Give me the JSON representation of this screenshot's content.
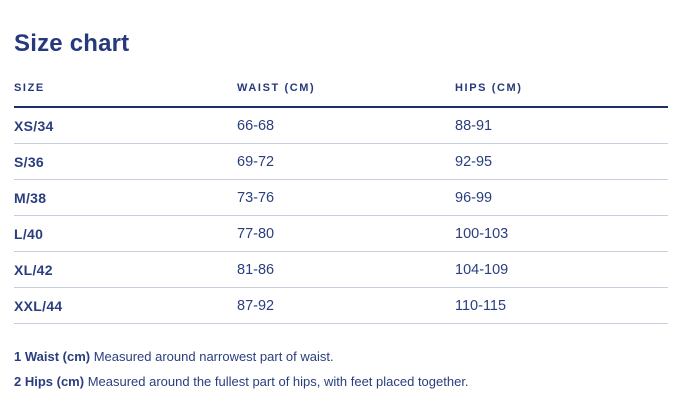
{
  "page": {
    "title": "Size chart"
  },
  "colors": {
    "text_navy": "#25397b",
    "header_rule": "#1f2f66",
    "row_rule": "#c7cedf",
    "background": "#ffffff"
  },
  "chart_data": {
    "type": "table",
    "title": "Size chart",
    "columns": [
      "SIZE",
      "WAIST (CM)",
      "HIPS (CM)"
    ],
    "rows": [
      {
        "size": "XS/34",
        "waist": "66-68",
        "hips": "88-91"
      },
      {
        "size": "S/36",
        "waist": "69-72",
        "hips": "92-95"
      },
      {
        "size": "M/38",
        "waist": "73-76",
        "hips": "96-99"
      },
      {
        "size": "L/40",
        "waist": "77-80",
        "hips": "100-103"
      },
      {
        "size": "XL/42",
        "waist": "81-86",
        "hips": "104-109"
      },
      {
        "size": "XXL/44",
        "waist": "87-92",
        "hips": "110-115"
      }
    ]
  },
  "table": {
    "headers": {
      "size": "SIZE",
      "waist": "WAIST (CM)",
      "hips": "HIPS (CM)"
    },
    "rows": [
      {
        "size": "XS/34",
        "waist": "66-68",
        "hips": "88-91"
      },
      {
        "size": "S/36",
        "waist": "69-72",
        "hips": "92-95"
      },
      {
        "size": "M/38",
        "waist": "73-76",
        "hips": "96-99"
      },
      {
        "size": "L/40",
        "waist": "77-80",
        "hips": "100-103"
      },
      {
        "size": "XL/42",
        "waist": "81-86",
        "hips": "104-109"
      },
      {
        "size": "XXL/44",
        "waist": "87-92",
        "hips": "110-115"
      }
    ]
  },
  "footnotes": [
    {
      "label": "1 Waist (cm)",
      "text": " Measured around narrowest part of waist."
    },
    {
      "label": "2 Hips (cm)",
      "text": " Measured around the fullest part of hips, with feet placed together."
    }
  ]
}
